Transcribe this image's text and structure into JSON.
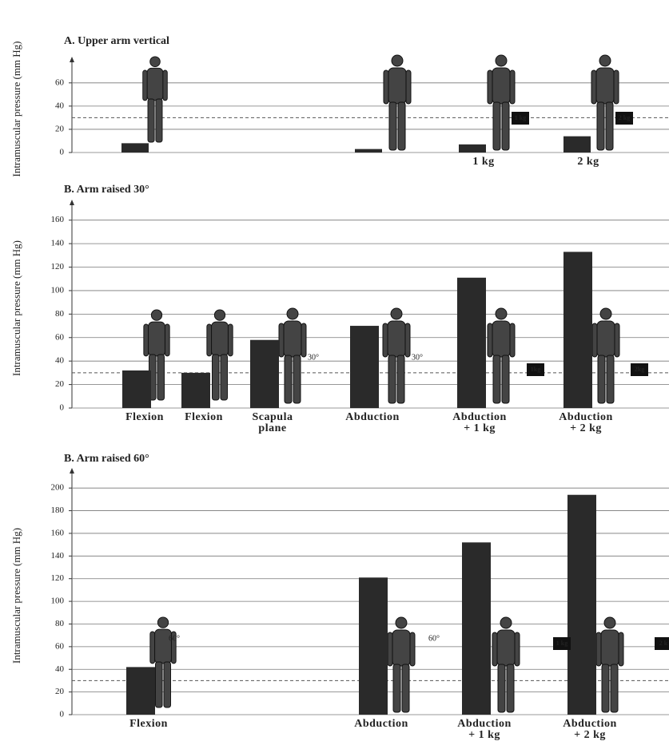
{
  "chart_data": [
    {
      "type": "bar",
      "title": "A. Upper arm vertical",
      "y_label": "Intramuscular pressure (mm Hg)",
      "categories": [
        null,
        null,
        "1 kg",
        "2 kg"
      ],
      "values": [
        8,
        3,
        7,
        14
      ],
      "color": "#2a2a2a",
      "ylim": [
        0,
        75
      ],
      "yticks": [
        0,
        20,
        40,
        60
      ],
      "grid": true,
      "reference_line": 30,
      "annotations": [
        "1 kg",
        "2 kg"
      ]
    },
    {
      "type": "bar",
      "title": "B. Arm raised 30°",
      "y_label": "Intramuscular pressure (mm Hg)",
      "categories": [
        "Flexion",
        "Flexion",
        "Scapula\nplane",
        "Abduction",
        "Abduction\n+ 1 kg",
        "Abduction\n+ 2 kg"
      ],
      "values": [
        32,
        30,
        58,
        70,
        111,
        133
      ],
      "color": "#2a2a2a",
      "ylim": [
        0,
        170
      ],
      "yticks": [
        0,
        20,
        40,
        60,
        80,
        100,
        120,
        140,
        160
      ],
      "grid": true,
      "reference_line": 30,
      "annotations": [
        "30°",
        "30°",
        "1kg",
        "2kg"
      ]
    },
    {
      "type": "bar",
      "title": "B. Arm raised 60°",
      "y_label": "Intramuscular pressure (mm Hg)",
      "categories": [
        "Flexion",
        "Abduction",
        "Abduction\n+ 1 kg",
        "Abduction\n+ 2 kg"
      ],
      "values": [
        42,
        121,
        152,
        194
      ],
      "color": "#2a2a2a",
      "ylim": [
        0,
        210
      ],
      "yticks": [
        0,
        20,
        40,
        60,
        80,
        100,
        120,
        140,
        160,
        180,
        200
      ],
      "grid": true,
      "reference_line": 30,
      "annotations": [
        "60°",
        "60°",
        "1 kg",
        "2 k"
      ]
    }
  ]
}
